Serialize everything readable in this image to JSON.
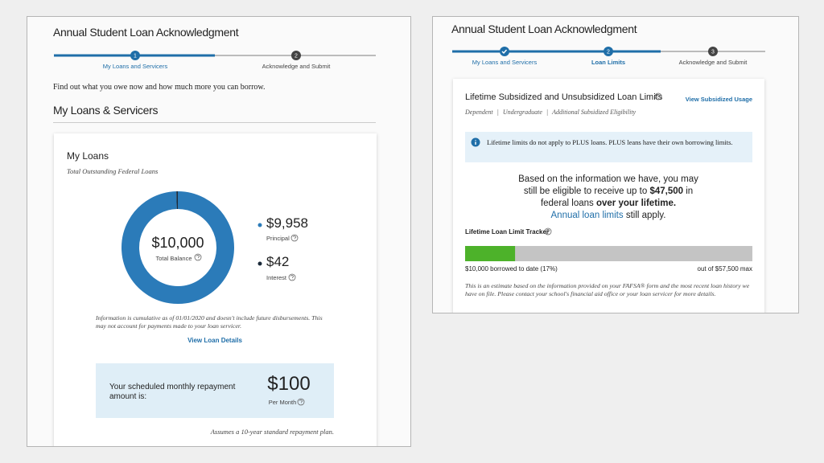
{
  "left": {
    "title": "Annual Student Loan Acknowledgment",
    "steps": [
      {
        "number": "1",
        "label": "My Loans and Servicers"
      },
      {
        "number": "2",
        "label": "Acknowledge and Submit"
      }
    ],
    "intro": "Find out what you owe now and how much more you can borrow.",
    "section_title": "My Loans & Servicers",
    "card": {
      "title": "My Loans",
      "subtitle": "Total Outstanding Federal Loans",
      "total": "$10,000",
      "total_label": "Total Balance",
      "principal": {
        "value": 9958,
        "label": "$9,958",
        "name": "Principal"
      },
      "interest": {
        "value": 42,
        "label": "$42",
        "name": "Interest"
      },
      "note": "Information is cumulative as of 01/01/2020 and doesn't include future disbursements. This may not account for payments made to your loan servicer.",
      "link": "View Loan Details",
      "repayment": {
        "text": "Your scheduled monthly repayment amount is:",
        "amount": "$100",
        "period": "Per Month"
      },
      "assumption": "Assumes a 10-year standard repayment plan."
    }
  },
  "right": {
    "title": "Annual Student Loan Acknowledgment",
    "steps": [
      {
        "label": "My Loans and Servicers"
      },
      {
        "number": "2",
        "label": "Loan Limits"
      },
      {
        "number": "3",
        "label": "Acknowledge and Submit"
      }
    ],
    "card": {
      "title": "Lifetime Subsidized and Unsubsidized Loan Limits",
      "link": "View Subsidized Usage",
      "tags": [
        "Dependent",
        "Undergraduate",
        "Additional Subsidized Eligibility"
      ],
      "info": "Lifetime limits do not apply to PLUS loans. PLUS leans have their own borrowing limits.",
      "eligibility": {
        "part1": "Based on the information we have, you may still be eligible to receive up to ",
        "amount": "$47,500",
        "part2": " in federal loans ",
        "emphasis": "over your lifetime.",
        "link": "Annual loan limits",
        "part3": " still apply."
      },
      "tracker": {
        "title": "Lifetime Loan Limit Tracker",
        "borrowed": {
          "value": 10000,
          "label": "$10,000 borrowed to date (17%)"
        },
        "max": {
          "value": 57500,
          "label": "out of $57,500 max"
        }
      },
      "disclaimer": "This is an estimate based on the information provided on your FAFSA® form and the most recent loan history we have on file. Please contact your school's financial aid office or your loan servicer for more details."
    }
  }
}
